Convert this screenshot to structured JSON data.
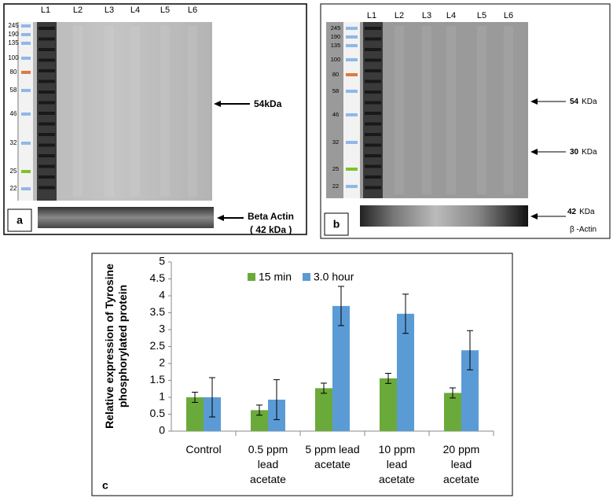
{
  "panels": [
    {
      "label": "a",
      "lanes": [
        "L1",
        "L2",
        "L3",
        "L4",
        "L5",
        "L6"
      ],
      "markers": [
        245,
        190,
        135,
        100,
        80,
        58,
        46,
        32,
        25,
        22
      ],
      "annotations": [
        "54kDa",
        "Beta Actin",
        "( 42 kDa )"
      ]
    },
    {
      "label": "b",
      "lanes": [
        "L1",
        "L2",
        "L3",
        "L4",
        "L5",
        "L6"
      ],
      "markers": [
        245,
        190,
        135,
        100,
        80,
        58,
        46,
        32,
        25,
        22
      ],
      "annotations": [
        {
          "value": "54",
          "unit": "KDa"
        },
        {
          "value": "30",
          "unit": "KDa"
        },
        {
          "value": "42",
          "unit": "KDa"
        },
        "β -Actin"
      ]
    }
  ],
  "chart_data": {
    "type": "bar",
    "panel_label": "c",
    "y_label": "Relative expression of Tyrosine phosphorylated protein",
    "categories": [
      "Control",
      "0.5 ppm lead acetate",
      "5 ppm lead acetate",
      "10 ppm lead acetate",
      "20 ppm lead acetate"
    ],
    "series": [
      {
        "name": "15 min",
        "color": "#6aaa3a",
        "values": [
          1.0,
          0.62,
          1.27,
          1.56,
          1.13
        ],
        "errors": [
          0.15,
          0.15,
          0.15,
          0.15,
          0.15
        ]
      },
      {
        "name": "3.0 hour",
        "color": "#5b9bd5",
        "values": [
          1.0,
          0.93,
          3.7,
          3.47,
          2.39
        ],
        "errors": [
          0.58,
          0.59,
          0.58,
          0.58,
          0.58
        ]
      }
    ],
    "ylim": [
      0,
      5
    ],
    "yticks": [
      0,
      0.5,
      1,
      1.5,
      2,
      2.5,
      3,
      3.5,
      4,
      4.5,
      5
    ],
    "legend": "top"
  }
}
